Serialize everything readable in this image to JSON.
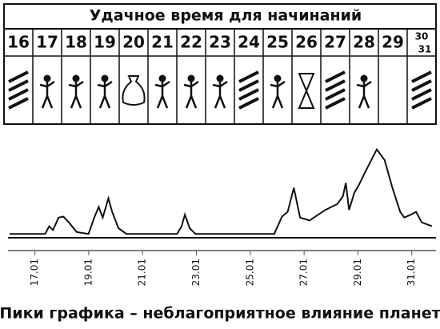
{
  "header": {
    "title": "Удачное время для начинаний"
  },
  "days": [
    "16",
    "17",
    "18",
    "19",
    "20",
    "21",
    "22",
    "23",
    "24",
    "25",
    "26",
    "27",
    "28",
    "29"
  ],
  "last_day": [
    "30",
    "31"
  ],
  "chart_data": {
    "type": "line",
    "caption": "Пики графика – неблагоприятное влияние планет",
    "x": [
      16.06,
      17.38,
      17.53,
      17.67,
      17.88,
      18.06,
      18.26,
      18.55,
      18.99,
      19.22,
      19.37,
      19.52,
      19.73,
      19.87,
      20.1,
      20.4,
      22.28,
      22.45,
      22.57,
      22.75,
      22.96,
      25.89,
      26.18,
      26.39,
      26.62,
      26.85,
      27.2,
      27.79,
      28.23,
      28.44,
      28.55,
      28.67,
      28.87,
      29.02,
      29.26,
      29.7,
      29.99,
      30.28,
      30.57,
      30.72,
      30.96,
      31.16,
      31.37,
      31.75
    ],
    "series": [
      {
        "color": "#111111",
        "values": [
          4,
          4,
          12,
          8,
          21,
          22,
          16,
          6,
          4,
          22,
          32,
          21,
          41,
          27,
          10,
          4,
          4,
          12,
          24,
          10,
          4,
          4,
          22,
          27,
          52,
          21,
          18,
          29,
          35,
          43,
          57,
          29,
          47,
          54,
          68,
          92,
          81,
          52,
          27,
          21,
          24,
          27,
          16,
          12
        ]
      }
    ],
    "xlim": [
      16,
      31.9
    ],
    "ylim": [
      0,
      100
    ],
    "xticks": [
      {
        "value": 17,
        "label": "17.01"
      },
      {
        "value": 19,
        "label": "19.01"
      },
      {
        "value": 21,
        "label": "21.01"
      },
      {
        "value": 23,
        "label": "23.01"
      },
      {
        "value": 25,
        "label": "25.01"
      },
      {
        "value": 27,
        "label": "27.01"
      },
      {
        "value": 29,
        "label": "29.01"
      },
      {
        "value": 31,
        "label": "31.01"
      }
    ]
  }
}
